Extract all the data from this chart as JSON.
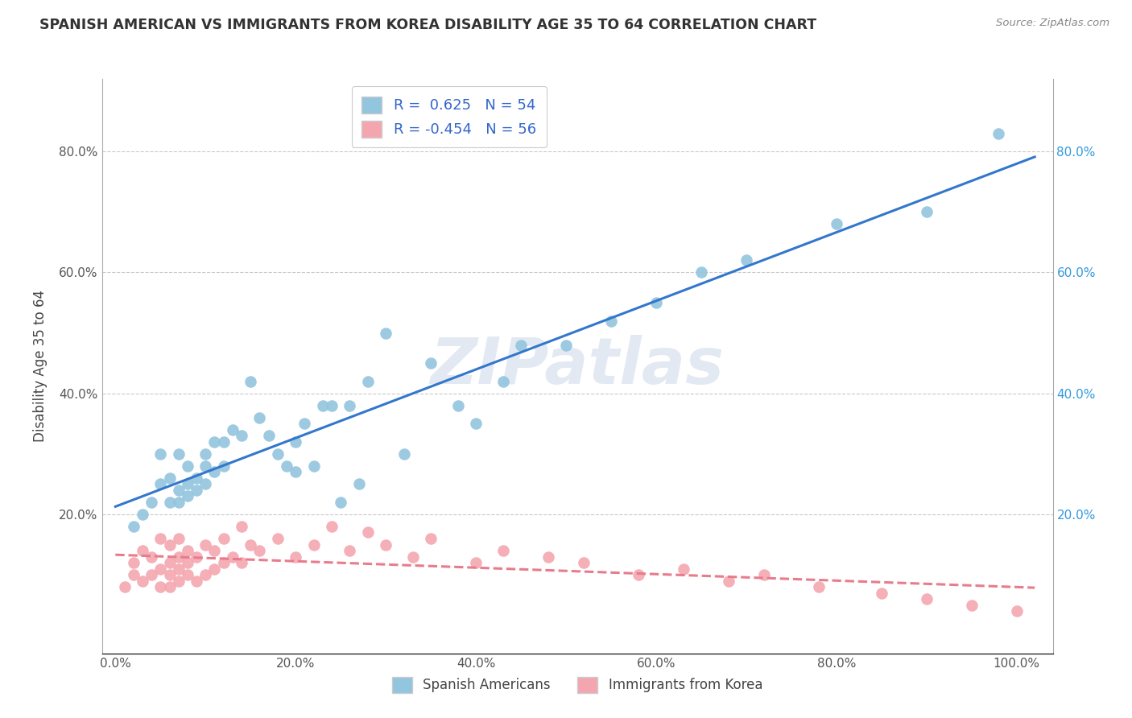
{
  "title": "SPANISH AMERICAN VS IMMIGRANTS FROM KOREA DISABILITY AGE 35 TO 64 CORRELATION CHART",
  "source": "Source: ZipAtlas.com",
  "ylabel": "Disability Age 35 to 64",
  "xtick_labels": [
    "0.0%",
    "20.0%",
    "40.0%",
    "60.0%",
    "80.0%",
    "100.0%"
  ],
  "xtick_vals": [
    0.0,
    0.2,
    0.4,
    0.6,
    0.8,
    1.0
  ],
  "ytick_labels": [
    "20.0%",
    "40.0%",
    "60.0%",
    "80.0%"
  ],
  "ytick_vals": [
    0.2,
    0.4,
    0.6,
    0.8
  ],
  "color_blue": "#92C5DE",
  "color_pink": "#F4A6B0",
  "line_blue": "#3377CC",
  "line_pink": "#E87B8C",
  "legend_blue_label": "R =  0.625   N = 54",
  "legend_pink_label": "R = -0.454   N = 56",
  "bottom_legend_blue": "Spanish Americans",
  "bottom_legend_pink": "Immigrants from Korea",
  "watermark": "ZIPatlas",
  "blue_x": [
    0.02,
    0.03,
    0.04,
    0.05,
    0.05,
    0.06,
    0.06,
    0.07,
    0.07,
    0.07,
    0.08,
    0.08,
    0.08,
    0.09,
    0.09,
    0.1,
    0.1,
    0.1,
    0.11,
    0.11,
    0.12,
    0.12,
    0.13,
    0.14,
    0.15,
    0.16,
    0.17,
    0.18,
    0.19,
    0.2,
    0.2,
    0.21,
    0.22,
    0.23,
    0.24,
    0.25,
    0.26,
    0.27,
    0.28,
    0.3,
    0.32,
    0.35,
    0.38,
    0.4,
    0.43,
    0.45,
    0.5,
    0.55,
    0.6,
    0.65,
    0.7,
    0.8,
    0.9,
    0.98
  ],
  "blue_y": [
    0.18,
    0.2,
    0.22,
    0.25,
    0.3,
    0.22,
    0.26,
    0.22,
    0.24,
    0.3,
    0.23,
    0.25,
    0.28,
    0.24,
    0.26,
    0.25,
    0.28,
    0.3,
    0.27,
    0.32,
    0.28,
    0.32,
    0.34,
    0.33,
    0.42,
    0.36,
    0.33,
    0.3,
    0.28,
    0.27,
    0.32,
    0.35,
    0.28,
    0.38,
    0.38,
    0.22,
    0.38,
    0.25,
    0.42,
    0.5,
    0.3,
    0.45,
    0.38,
    0.35,
    0.42,
    0.48,
    0.48,
    0.52,
    0.55,
    0.6,
    0.62,
    0.68,
    0.7,
    0.83
  ],
  "pink_x": [
    0.01,
    0.02,
    0.02,
    0.03,
    0.03,
    0.04,
    0.04,
    0.05,
    0.05,
    0.05,
    0.06,
    0.06,
    0.06,
    0.06,
    0.07,
    0.07,
    0.07,
    0.07,
    0.08,
    0.08,
    0.08,
    0.09,
    0.09,
    0.1,
    0.1,
    0.11,
    0.11,
    0.12,
    0.12,
    0.13,
    0.14,
    0.14,
    0.15,
    0.16,
    0.18,
    0.2,
    0.22,
    0.24,
    0.26,
    0.28,
    0.3,
    0.33,
    0.35,
    0.4,
    0.43,
    0.48,
    0.52,
    0.58,
    0.63,
    0.68,
    0.72,
    0.78,
    0.85,
    0.9,
    0.95,
    1.0
  ],
  "pink_y": [
    0.08,
    0.1,
    0.12,
    0.09,
    0.14,
    0.1,
    0.13,
    0.08,
    0.11,
    0.16,
    0.08,
    0.1,
    0.12,
    0.15,
    0.09,
    0.11,
    0.13,
    0.16,
    0.1,
    0.12,
    0.14,
    0.09,
    0.13,
    0.1,
    0.15,
    0.11,
    0.14,
    0.12,
    0.16,
    0.13,
    0.12,
    0.18,
    0.15,
    0.14,
    0.16,
    0.13,
    0.15,
    0.18,
    0.14,
    0.17,
    0.15,
    0.13,
    0.16,
    0.12,
    0.14,
    0.13,
    0.12,
    0.1,
    0.11,
    0.09,
    0.1,
    0.08,
    0.07,
    0.06,
    0.05,
    0.04
  ]
}
